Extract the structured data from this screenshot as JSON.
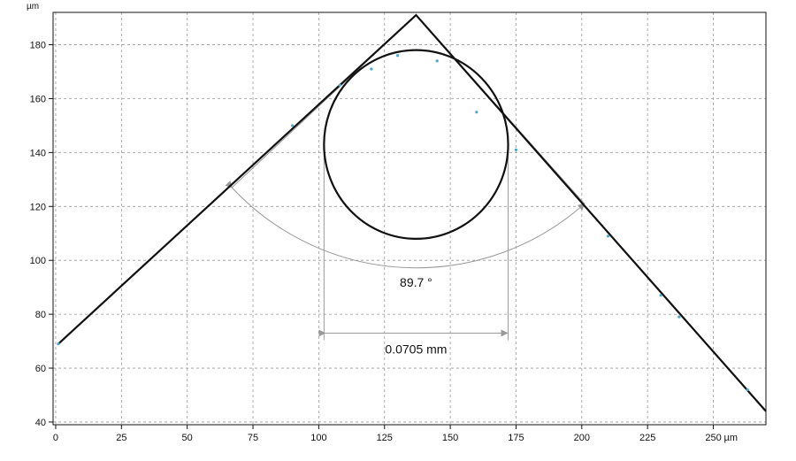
{
  "chart_data": {
    "type": "line",
    "title": "",
    "xlabel": "",
    "ylabel": "",
    "x_unit": "µm",
    "y_unit": "µm",
    "xlim": [
      -1,
      270
    ],
    "ylim": [
      39,
      192
    ],
    "grid": true,
    "x_ticks": [
      0,
      25,
      50,
      75,
      100,
      125,
      150,
      175,
      200,
      225,
      250
    ],
    "x_tick_labels": [
      "0",
      "25",
      "50",
      "75",
      "100",
      "125",
      "150",
      "175",
      "200",
      "225",
      "250"
    ],
    "y_ticks": [
      40,
      60,
      80,
      100,
      120,
      140,
      160,
      180
    ],
    "y_tick_labels": [
      "40",
      "60",
      "80",
      "100",
      "120",
      "140",
      "160",
      "180"
    ],
    "series": [
      {
        "kind": "profile-line",
        "x": [
          1,
          137,
          270
        ],
        "y": [
          69,
          191,
          44
        ],
        "color": "#111111"
      },
      {
        "kind": "measured-points",
        "x": [
          1,
          90,
          108,
          120,
          130,
          145,
          160,
          175,
          210,
          230,
          237,
          263
        ],
        "y": [
          69,
          150,
          165,
          171,
          176,
          174,
          155,
          141,
          109,
          87,
          79,
          52
        ],
        "color": "#4da6c9"
      }
    ],
    "circle": {
      "cx": 137,
      "cy": 143,
      "r": 35,
      "color": "#111111"
    },
    "annotations": [
      {
        "kind": "angle",
        "label": "89.7 °",
        "vertex": [
          137,
          191
        ],
        "end_a": [
          67,
          127
        ],
        "end_b": [
          201,
          121
        ],
        "color": "#999999"
      },
      {
        "kind": "dimension",
        "label": "0.0705 mm",
        "x1": 102,
        "x2": 172,
        "y": 73,
        "ext_top": 143,
        "color": "#999999"
      }
    ]
  }
}
